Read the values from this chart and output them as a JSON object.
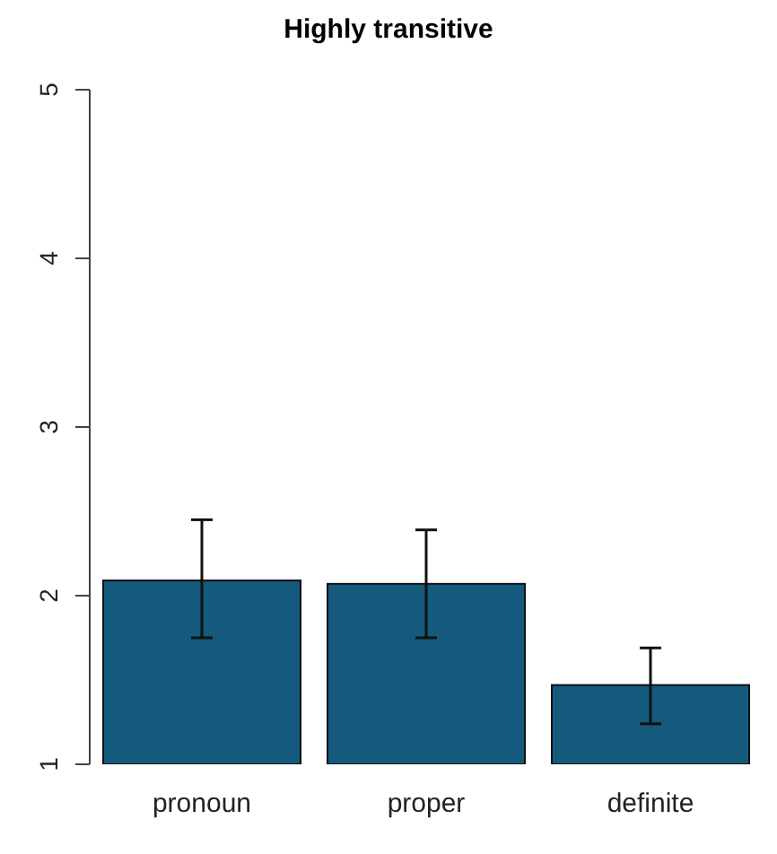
{
  "chart_data": {
    "type": "bar",
    "title": "Highly transitive",
    "categories": [
      "pronoun",
      "proper",
      "definite"
    ],
    "values": [
      2.09,
      2.07,
      1.47
    ],
    "errors": [
      [
        1.75,
        2.45
      ],
      [
        1.75,
        2.39
      ],
      [
        1.24,
        1.69
      ]
    ],
    "color": "#135a7c",
    "ylim": [
      1,
      5
    ],
    "yticks": [
      1,
      2,
      3,
      4,
      5
    ],
    "grid": false,
    "legend": false
  }
}
